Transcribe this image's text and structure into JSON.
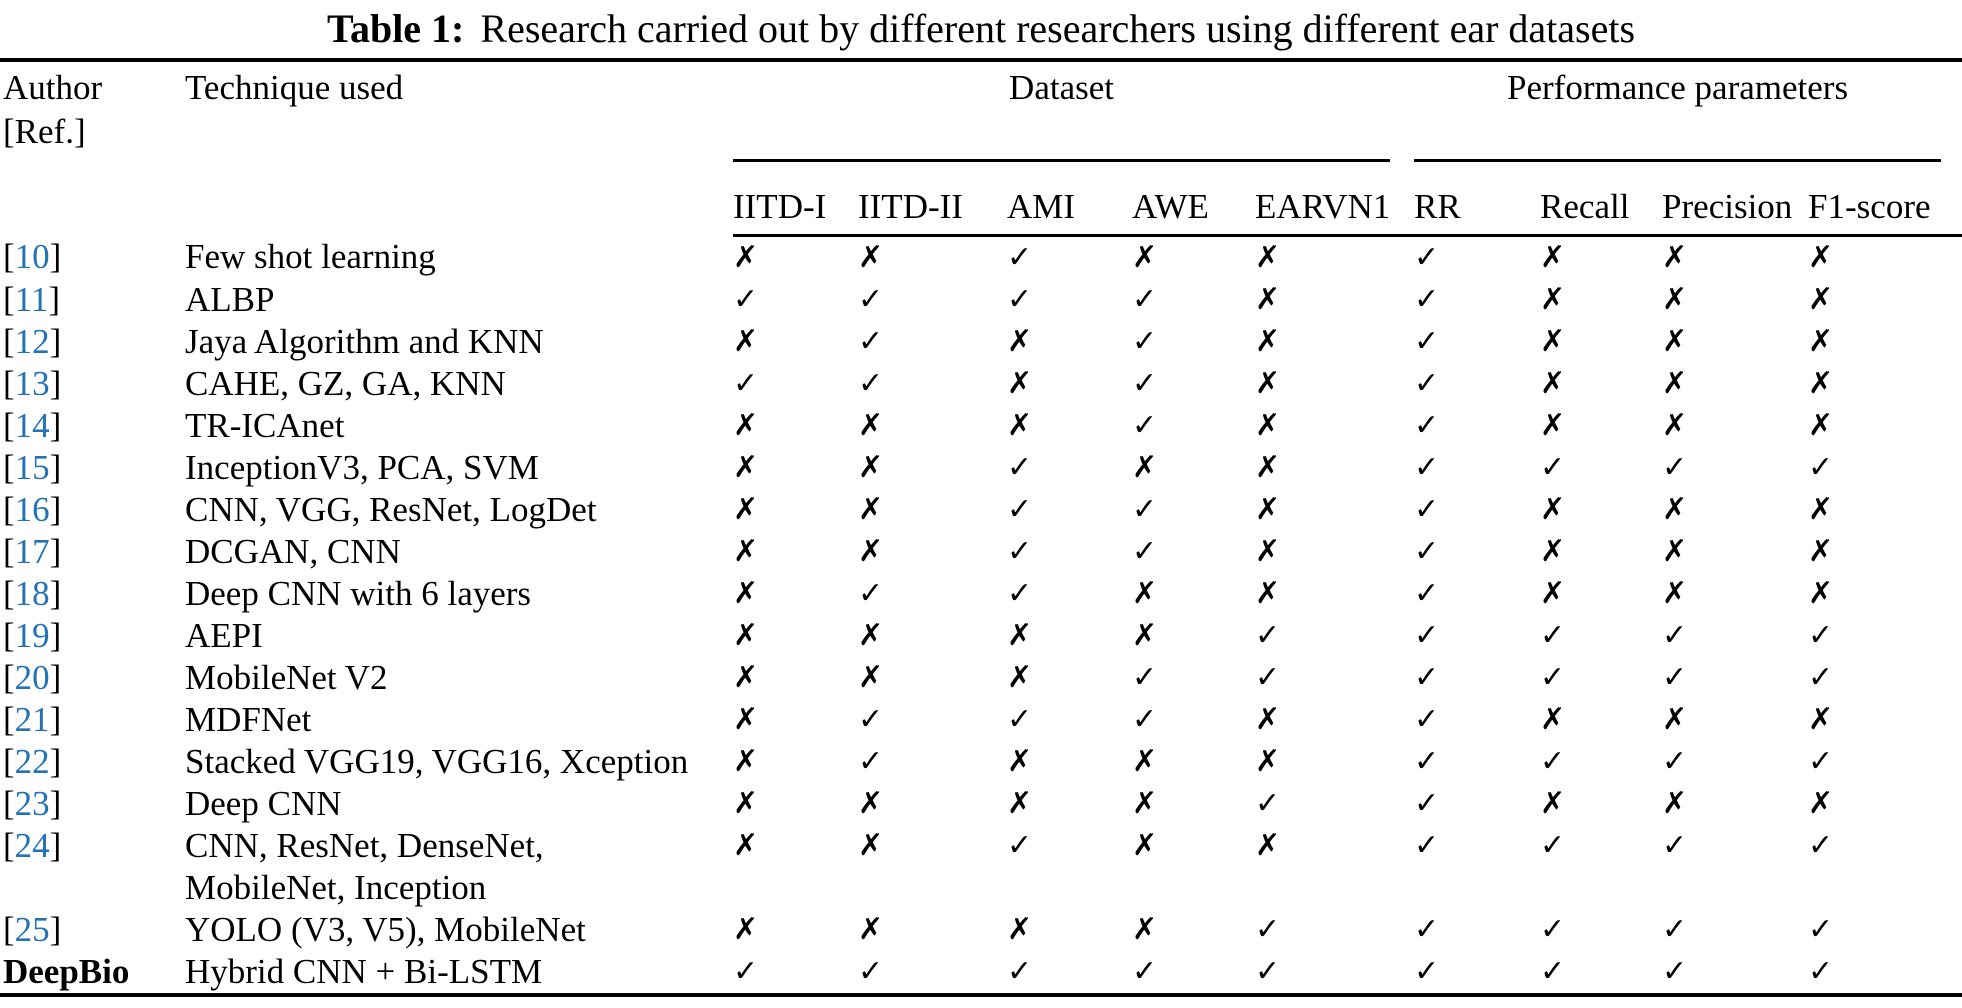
{
  "title": {
    "label": "Table 1:",
    "text": "Research carried out by different researchers using different ear datasets"
  },
  "columns": {
    "author_line1": "Author",
    "author_line2": "[Ref.]",
    "technique": "Technique used",
    "dataset_group": "Dataset",
    "performance_group": "Performance parameters",
    "dataset": [
      "IITD-I",
      "IITD-II",
      "AMI",
      "AWE",
      "EARVN1"
    ],
    "performance": [
      "RR",
      "Recall",
      "Precision",
      "F1-score"
    ]
  },
  "marks": {
    "yes": "✓",
    "no": "✗"
  },
  "ref_format": {
    "open": "[",
    "close": "]"
  },
  "colors": {
    "ref_blue": "#2272b5",
    "text": "#000000",
    "background": "#ffffff"
  },
  "rows": [
    {
      "ref_num": "10",
      "technique_lines": [
        "Few shot learning"
      ],
      "marks": [
        "no",
        "no",
        "yes",
        "no",
        "no",
        "yes",
        "no",
        "no",
        "no"
      ]
    },
    {
      "ref_num": "11",
      "technique_lines": [
        "ALBP"
      ],
      "marks": [
        "yes",
        "yes",
        "yes",
        "yes",
        "no",
        "yes",
        "no",
        "no",
        "no"
      ]
    },
    {
      "ref_num": "12",
      "technique_lines": [
        "Jaya Algorithm and KNN"
      ],
      "marks": [
        "no",
        "yes",
        "no",
        "yes",
        "no",
        "yes",
        "no",
        "no",
        "no"
      ]
    },
    {
      "ref_num": "13",
      "technique_lines": [
        "CAHE, GZ, GA, KNN"
      ],
      "marks": [
        "yes",
        "yes",
        "no",
        "yes",
        "no",
        "yes",
        "no",
        "no",
        "no"
      ]
    },
    {
      "ref_num": "14",
      "technique_lines": [
        "TR-ICAnet"
      ],
      "marks": [
        "no",
        "no",
        "no",
        "yes",
        "no",
        "yes",
        "no",
        "no",
        "no"
      ]
    },
    {
      "ref_num": "15",
      "technique_lines": [
        "InceptionV3, PCA, SVM"
      ],
      "marks": [
        "no",
        "no",
        "yes",
        "no",
        "no",
        "yes",
        "yes",
        "yes",
        "yes"
      ]
    },
    {
      "ref_num": "16",
      "technique_lines": [
        "CNN, VGG, ResNet, LogDet"
      ],
      "marks": [
        "no",
        "no",
        "yes",
        "yes",
        "no",
        "yes",
        "no",
        "no",
        "no"
      ]
    },
    {
      "ref_num": "17",
      "technique_lines": [
        "DCGAN, CNN"
      ],
      "marks": [
        "no",
        "no",
        "yes",
        "yes",
        "no",
        "yes",
        "no",
        "no",
        "no"
      ]
    },
    {
      "ref_num": "18",
      "technique_lines": [
        "Deep CNN with 6 layers"
      ],
      "marks": [
        "no",
        "yes",
        "yes",
        "no",
        "no",
        "yes",
        "no",
        "no",
        "no"
      ]
    },
    {
      "ref_num": "19",
      "technique_lines": [
        "AEPI"
      ],
      "marks": [
        "no",
        "no",
        "no",
        "no",
        "yes",
        "yes",
        "yes",
        "yes",
        "yes"
      ]
    },
    {
      "ref_num": "20",
      "technique_lines": [
        "MobileNet V2"
      ],
      "marks": [
        "no",
        "no",
        "no",
        "yes",
        "yes",
        "yes",
        "yes",
        "yes",
        "yes"
      ]
    },
    {
      "ref_num": "21",
      "technique_lines": [
        "MDFNet"
      ],
      "marks": [
        "no",
        "yes",
        "yes",
        "yes",
        "no",
        "yes",
        "no",
        "no",
        "no"
      ]
    },
    {
      "ref_num": "22",
      "technique_lines": [
        "Stacked VGG19, VGG16, Xception"
      ],
      "marks": [
        "no",
        "yes",
        "no",
        "no",
        "no",
        "yes",
        "yes",
        "yes",
        "yes"
      ]
    },
    {
      "ref_num": "23",
      "technique_lines": [
        "Deep CNN"
      ],
      "marks": [
        "no",
        "no",
        "no",
        "no",
        "yes",
        "yes",
        "no",
        "no",
        "no"
      ]
    },
    {
      "ref_num": "24",
      "technique_lines": [
        "CNN, ResNet, DenseNet,",
        "MobileNet, Inception"
      ],
      "marks": [
        "no",
        "no",
        "yes",
        "no",
        "no",
        "yes",
        "yes",
        "yes",
        "yes"
      ]
    },
    {
      "ref_num": "25",
      "technique_lines": [
        "YOLO (V3, V5), MobileNet"
      ],
      "marks": [
        "no",
        "no",
        "no",
        "no",
        "yes",
        "yes",
        "yes",
        "yes",
        "yes"
      ]
    },
    {
      "author": "DeepBio",
      "technique_lines": [
        "Hybrid CNN + Bi-LSTM"
      ],
      "marks": [
        "yes",
        "yes",
        "yes",
        "yes",
        "yes",
        "yes",
        "yes",
        "yes",
        "yes"
      ]
    }
  ]
}
